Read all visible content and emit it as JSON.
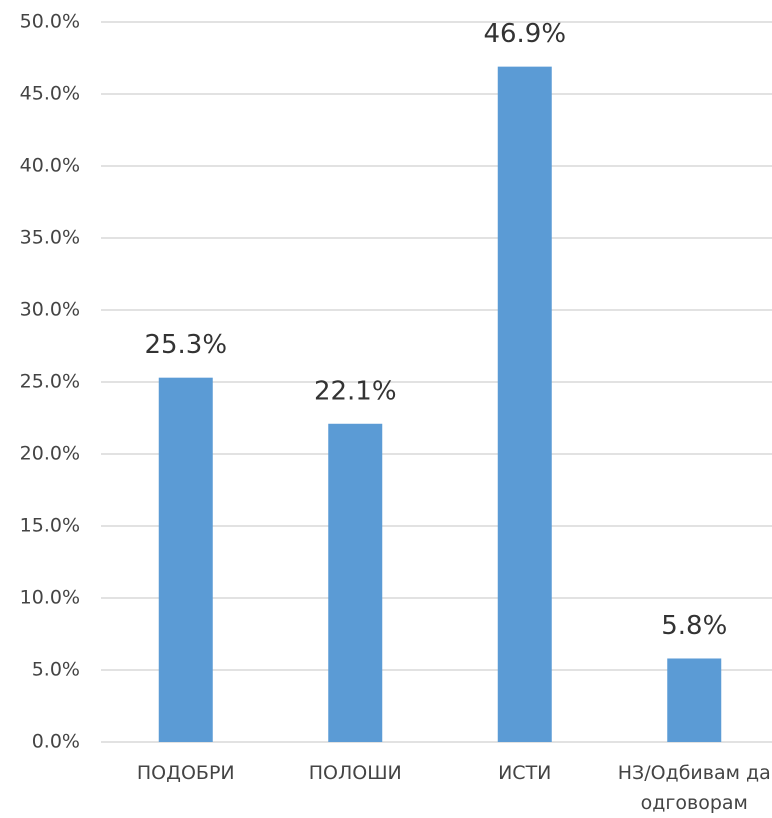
{
  "chart_data": {
    "type": "bar",
    "categories": [
      "ПОДОБРИ",
      "ПОЛОШИ",
      "ИСТИ",
      "НЗ/Одбивам да одговорам"
    ],
    "values": [
      25.3,
      22.1,
      46.9,
      5.8
    ],
    "value_labels": [
      "25.3%",
      "22.1%",
      "46.9%",
      "5.8%"
    ],
    "color": "#5b9bd5",
    "ylim": [
      0,
      50
    ],
    "yticks": [
      {
        "value": 0,
        "label": "0.0%"
      },
      {
        "value": 5,
        "label": "5.0%"
      },
      {
        "value": 10,
        "label": "10.0%"
      },
      {
        "value": 15,
        "label": "15.0%"
      },
      {
        "value": 20,
        "label": "20.0%"
      },
      {
        "value": 25,
        "label": "25.0%"
      },
      {
        "value": 30,
        "label": "30.0%"
      },
      {
        "value": 35,
        "label": "35.0%"
      },
      {
        "value": 40,
        "label": "40.0%"
      },
      {
        "value": 45,
        "label": "45.0%"
      },
      {
        "value": 50,
        "label": "50.0%"
      }
    ],
    "grid": true
  }
}
